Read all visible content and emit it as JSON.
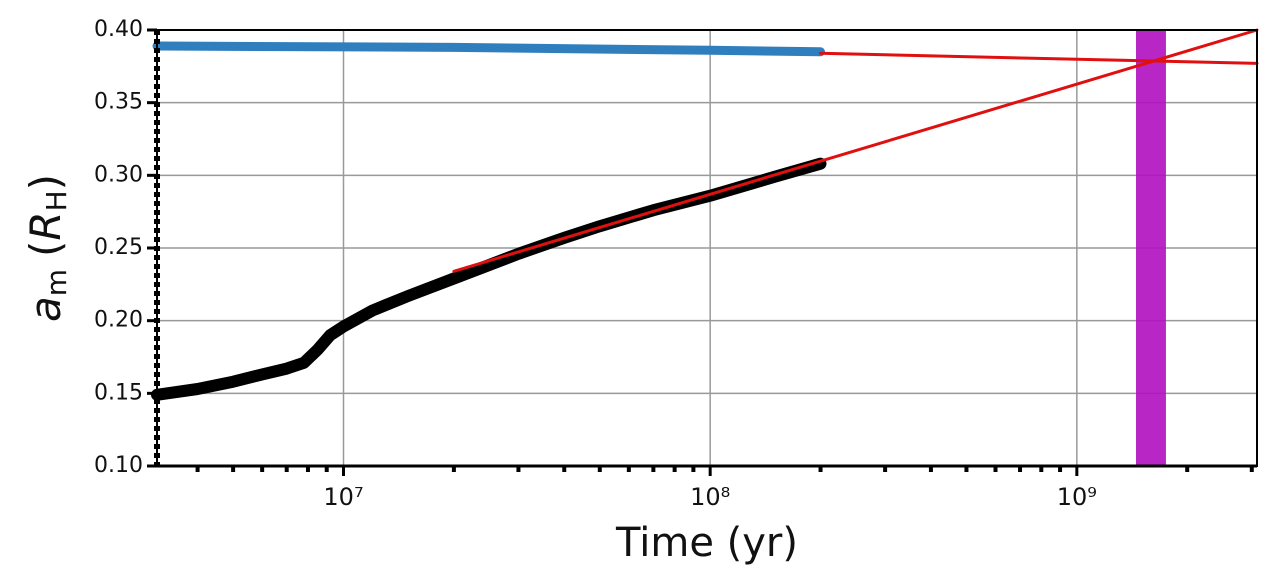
{
  "chart_data": {
    "type": "line",
    "xlabel": "Time (yr)",
    "ylabel": [
      "a",
      "m",
      "(",
      "R",
      "H",
      ")"
    ],
    "xscale": "log",
    "xlim": [
      3100000,
      3100000000
    ],
    "ylim": [
      0.1,
      0.4
    ],
    "xticks": [
      {
        "value": 10000000,
        "label": "10⁷"
      },
      {
        "value": 100000000,
        "label": "10⁸"
      },
      {
        "value": 1000000000,
        "label": "10⁹"
      }
    ],
    "xminorticks": [
      4000000,
      5000000,
      6000000,
      7000000,
      8000000,
      9000000,
      20000000,
      30000000,
      40000000,
      50000000,
      60000000,
      70000000,
      80000000,
      90000000,
      200000000,
      300000000,
      400000000,
      500000000,
      600000000,
      700000000,
      800000000,
      900000000,
      2000000000,
      3000000000
    ],
    "yticks": [
      {
        "value": 0.1,
        "label": "0.10"
      },
      0.15,
      {
        "value": 0.2,
        "label": "0.20"
      },
      0.25,
      {
        "value": 0.3,
        "label": "0.30"
      },
      0.35,
      {
        "value": 0.4,
        "label": "0.40"
      }
    ],
    "grid": true,
    "series": [
      {
        "color": "#2f7fbf",
        "width": 9,
        "x": [
          3100000,
          20000000,
          100000000,
          200000000
        ],
        "values": [
          0.389,
          0.388,
          0.386,
          0.385
        ]
      },
      {
        "color": "#000000",
        "width": 12,
        "x": [
          3100000,
          4000000,
          5000000,
          6000000,
          7000000,
          7800000,
          8500000,
          9200000,
          10000000,
          12000000,
          15000000,
          20000000,
          30000000,
          40000000,
          50000000,
          70000000,
          100000000,
          150000000,
          200000000
        ],
        "values": [
          0.149,
          0.153,
          0.158,
          0.163,
          0.167,
          0.171,
          0.18,
          0.19,
          0.196,
          0.207,
          0.217,
          0.229,
          0.246,
          0.257,
          0.265,
          0.276,
          0.286,
          0.299,
          0.308
        ]
      },
      {
        "color": "#e01010",
        "width": 3,
        "x": [
          20000000,
          3100000000
        ],
        "values": [
          0.234,
          0.4
        ]
      },
      {
        "color": "#e01010",
        "width": 3,
        "x": [
          200000000,
          3100000000
        ],
        "values": [
          0.384,
          0.377
        ]
      }
    ],
    "vspan": {
      "x": [
        1450000000,
        1750000000
      ],
      "color": "#b010c0"
    }
  }
}
